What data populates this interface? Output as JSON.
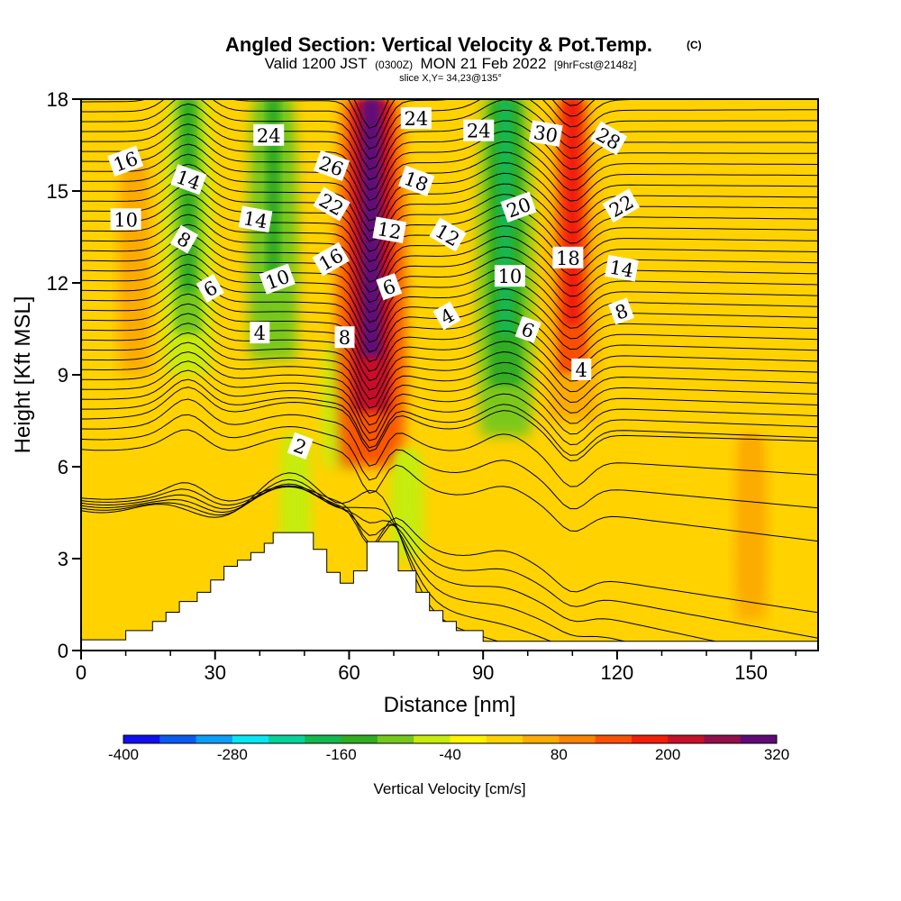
{
  "chart_data": {
    "type": "heatmap",
    "title": "Angled Section: Vertical Velocity & Pot.Temp.",
    "title_note": "(C)",
    "subtitle_parts": [
      "Valid 1200 JST",
      "(0300Z)",
      "MON 21 Feb 2022",
      "[9hrFcst@2148z]"
    ],
    "slice_text": "slice X,Y= 34,23@135°",
    "xlabel": "Distance [nm]",
    "ylabel": "Height [Kft MSL]",
    "xlim": [
      0,
      165
    ],
    "ylim": [
      0,
      18
    ],
    "x_ticks": [
      0,
      30,
      60,
      90,
      120,
      150
    ],
    "y_ticks": [
      0,
      3,
      6,
      9,
      12,
      15,
      18
    ],
    "colorbar": {
      "label": "Vertical Velocity [cm/s]",
      "ticks": [
        -400,
        -280,
        -160,
        -40,
        80,
        200,
        320
      ],
      "min": -400,
      "step": 40,
      "colors": [
        "#1010ee",
        "#0a5bf2",
        "#0a9ef8",
        "#08e6f2",
        "#06d39a",
        "#12b850",
        "#30ad20",
        "#76c81c",
        "#c7ec0a",
        "#fff300",
        "#ffd200",
        "#fcab03",
        "#f98403",
        "#fa5005",
        "#f01e0a",
        "#c8102a",
        "#92104a",
        "#600a78"
      ]
    },
    "vertical_velocity_features": [
      {
        "x": 24,
        "bottom": 9.0,
        "top": 18,
        "value": -140
      },
      {
        "x": 43,
        "bottom": 9.5,
        "top": 18,
        "value": -150
      },
      {
        "x": 48,
        "bottom": 1.5,
        "top": 7,
        "value": -60
      },
      {
        "x": 58,
        "bottom": 6,
        "top": 10,
        "value": -80
      },
      {
        "x": 65,
        "bottom": 6,
        "top": 18,
        "value": 290
      },
      {
        "x": 73,
        "bottom": 3,
        "top": 6.5,
        "value": -70
      },
      {
        "x": 95,
        "bottom": 7,
        "top": 18,
        "value": -180
      },
      {
        "x": 110,
        "bottom": 7.5,
        "top": 18,
        "value": 160
      },
      {
        "x": 12,
        "bottom": 9,
        "top": 16,
        "value": 60
      },
      {
        "x": 150,
        "bottom": 1,
        "top": 7,
        "value": 60
      }
    ],
    "theta_contour_labels": [
      {
        "text": "16",
        "x": 10,
        "y": 15.95
      },
      {
        "text": "10",
        "x": 10,
        "y": 14.05
      },
      {
        "text": "14",
        "x": 24,
        "y": 15.35
      },
      {
        "text": "8",
        "x": 23,
        "y": 13.4
      },
      {
        "text": "6",
        "x": 29,
        "y": 11.8
      },
      {
        "text": "24",
        "x": 42,
        "y": 16.8
      },
      {
        "text": "14",
        "x": 39,
        "y": 14.05
      },
      {
        "text": "10",
        "x": 44,
        "y": 12.1
      },
      {
        "text": "4",
        "x": 40,
        "y": 10.35
      },
      {
        "text": "26",
        "x": 56,
        "y": 15.8
      },
      {
        "text": "22",
        "x": 56,
        "y": 14.55
      },
      {
        "text": "16",
        "x": 56,
        "y": 12.75
      },
      {
        "text": "8",
        "x": 59,
        "y": 10.2
      },
      {
        "text": "12",
        "x": 69,
        "y": 13.7
      },
      {
        "text": "6",
        "x": 69,
        "y": 11.85
      },
      {
        "text": "24",
        "x": 75,
        "y": 17.35
      },
      {
        "text": "18",
        "x": 75,
        "y": 15.3
      },
      {
        "text": "12",
        "x": 82,
        "y": 13.55
      },
      {
        "text": "4",
        "x": 82,
        "y": 10.9
      },
      {
        "text": "24",
        "x": 89,
        "y": 16.95
      },
      {
        "text": "30",
        "x": 104,
        "y": 16.85
      },
      {
        "text": "20",
        "x": 98,
        "y": 14.45
      },
      {
        "text": "10",
        "x": 96,
        "y": 12.2
      },
      {
        "text": "6",
        "x": 100,
        "y": 10.45
      },
      {
        "text": "28",
        "x": 118,
        "y": 16.7
      },
      {
        "text": "22",
        "x": 121,
        "y": 14.5
      },
      {
        "text": "18",
        "x": 109,
        "y": 12.8
      },
      {
        "text": "14",
        "x": 121,
        "y": 12.45
      },
      {
        "text": "8",
        "x": 121,
        "y": 11.05
      },
      {
        "text": "4",
        "x": 112,
        "y": 9.15
      },
      {
        "text": "2",
        "x": 49,
        "y": 6.65
      }
    ],
    "terrain": [
      [
        0,
        0.35
      ],
      [
        10,
        0.35
      ],
      [
        10,
        0.65
      ],
      [
        16,
        0.65
      ],
      [
        16,
        0.95
      ],
      [
        19,
        0.95
      ],
      [
        19,
        1.25
      ],
      [
        22,
        1.25
      ],
      [
        22,
        1.6
      ],
      [
        26,
        1.6
      ],
      [
        26,
        1.9
      ],
      [
        29,
        1.9
      ],
      [
        29,
        2.3
      ],
      [
        32,
        2.3
      ],
      [
        32,
        2.75
      ],
      [
        35,
        2.75
      ],
      [
        35,
        2.95
      ],
      [
        38,
        2.95
      ],
      [
        38,
        3.2
      ],
      [
        41,
        3.2
      ],
      [
        41,
        3.5
      ],
      [
        43,
        3.5
      ],
      [
        43,
        3.85
      ],
      [
        52,
        3.85
      ],
      [
        52,
        3.3
      ],
      [
        55,
        3.3
      ],
      [
        55,
        2.55
      ],
      [
        58,
        2.55
      ],
      [
        58,
        2.2
      ],
      [
        61,
        2.2
      ],
      [
        61,
        2.6
      ],
      [
        64,
        2.6
      ],
      [
        64,
        3.55
      ],
      [
        71,
        3.55
      ],
      [
        71,
        2.6
      ],
      [
        75,
        2.6
      ],
      [
        75,
        1.9
      ],
      [
        78,
        1.9
      ],
      [
        78,
        1.3
      ],
      [
        81,
        1.3
      ],
      [
        81,
        0.95
      ],
      [
        84,
        0.95
      ],
      [
        84,
        0.65
      ],
      [
        90,
        0.65
      ],
      [
        90,
        0.3
      ],
      [
        165,
        0.3
      ]
    ]
  }
}
